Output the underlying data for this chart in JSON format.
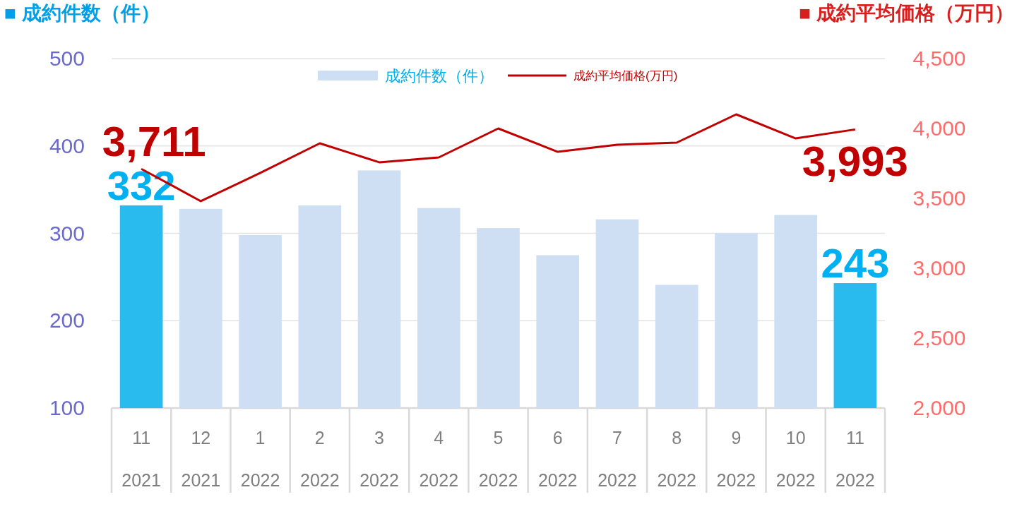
{
  "chart_data": {
    "type": "bar",
    "ylabel": "■ 成約件数（件）",
    "y2label": "■ 成約平均価格（万円）",
    "categories": [
      "11\n2021",
      "12\n2021",
      "1\n2022",
      "2\n2022",
      "3\n2022",
      "4\n2022",
      "5\n2022",
      "6\n2022",
      "7\n2022",
      "8\n2022",
      "9\n2022",
      "10\n2022",
      "11\n2022"
    ],
    "series": [
      {
        "name": "成約件数（件）",
        "color": "#cfdff3",
        "colors": [
          "#29bbee",
          "#cfdff3",
          "#cfdff3",
          "#cfdff3",
          "#cfdff3",
          "#cfdff3",
          "#cfdff3",
          "#cfdff3",
          "#cfdff3",
          "#cfdff3",
          "#cfdff3",
          "#cfdff3",
          "#29bbee"
        ],
        "values": [
          332,
          328,
          298,
          332,
          372,
          329,
          306,
          275,
          316,
          241,
          300,
          321,
          243
        ],
        "value_labels": [
          "332",
          null,
          null,
          null,
          null,
          null,
          null,
          null,
          null,
          null,
          null,
          null,
          "243"
        ]
      },
      {
        "name": "成約平均価格(万円)",
        "type": "line",
        "axis": "y2",
        "color": "#c00000",
        "values": [
          3711,
          3480,
          3682,
          3894,
          3758,
          3793,
          4000,
          3833,
          3884,
          3899,
          4101,
          3929,
          3993
        ],
        "value_labels": [
          "3,711",
          null,
          null,
          null,
          null,
          null,
          null,
          null,
          null,
          null,
          null,
          null,
          "3,993"
        ]
      }
    ],
    "ylim": [
      100,
      500
    ],
    "yticks": [
      100,
      200,
      300,
      400,
      500
    ],
    "y2lim": [
      2000,
      4500
    ],
    "y2ticks": [
      {
        "value": 2000,
        "label": "2,000"
      },
      {
        "value": 2500,
        "label": "2,500"
      },
      {
        "value": 3000,
        "label": "3,000"
      },
      {
        "value": 3500,
        "label": "3,500"
      },
      {
        "value": 4000,
        "label": "4,000"
      },
      {
        "value": 4500,
        "label": "4,500"
      }
    ],
    "grid": "y",
    "legend": "top"
  }
}
